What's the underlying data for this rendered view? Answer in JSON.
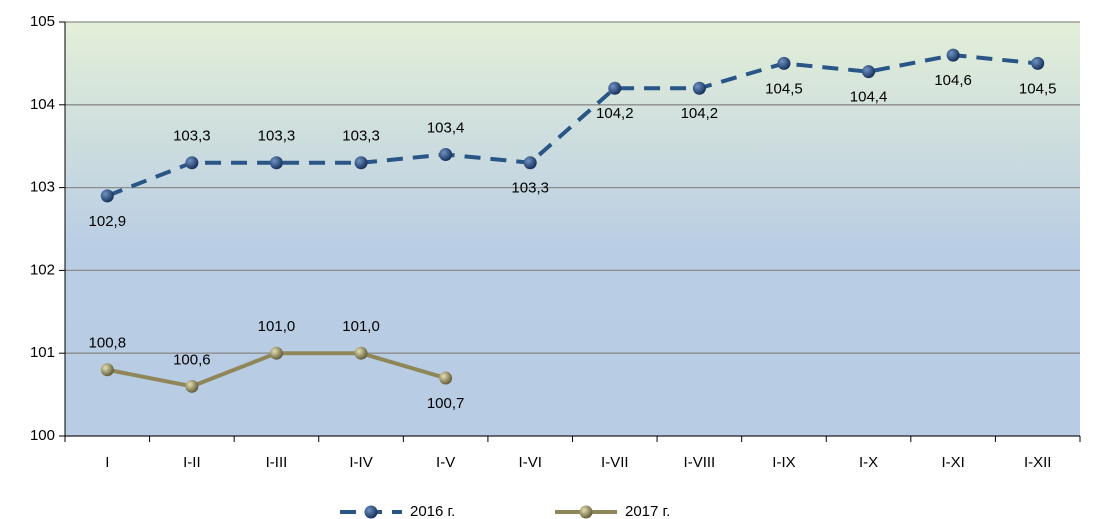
{
  "chart_data": {
    "type": "line",
    "categories": [
      "I",
      "I-II",
      "I-III",
      "I-IV",
      "I-V",
      "I-VI",
      "I-VII",
      "I-VIII",
      "I-IX",
      "I-X",
      "I-XI",
      "I-XII"
    ],
    "series": [
      {
        "name": "2016 г.",
        "color": "#2a5587",
        "dashed": true,
        "values": [
          102.9,
          103.3,
          103.3,
          103.3,
          103.4,
          103.3,
          104.2,
          104.2,
          104.5,
          104.4,
          104.6,
          104.5
        ],
        "value_labels": [
          "102,9",
          "103,3",
          "103,3",
          "103,3",
          "103,4",
          "103,3",
          "104,2",
          "104,2",
          "104,5",
          "104,4",
          "104,6",
          "104,5"
        ]
      },
      {
        "name": "2017 г.",
        "color": "#8f8759",
        "dashed": false,
        "values": [
          100.8,
          100.6,
          101.0,
          101.0,
          100.7,
          null,
          null,
          null,
          null,
          null,
          null,
          null
        ],
        "value_labels": [
          "100,8",
          "100,6",
          "101,0",
          "101,0",
          "100,7",
          null,
          null,
          null,
          null,
          null,
          null,
          null
        ]
      }
    ],
    "ylim": [
      100,
      105
    ],
    "yticks": [
      100,
      101,
      102,
      103,
      104,
      105
    ],
    "grid": true,
    "legend": "bottom"
  }
}
